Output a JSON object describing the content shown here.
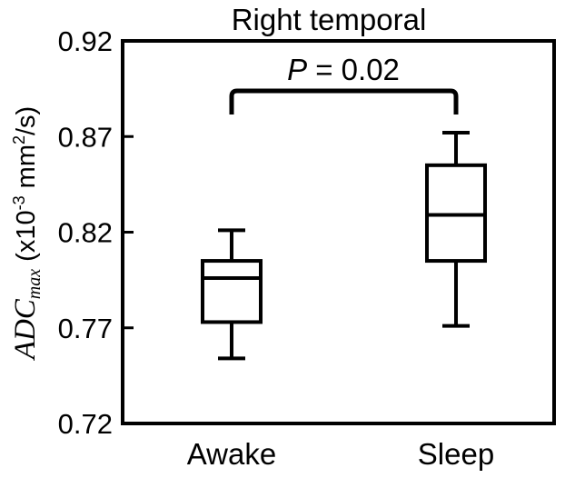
{
  "chart_data": {
    "type": "box",
    "title": "Right temporal",
    "ylabel": {
      "main": "ADC",
      "subscript": "max",
      "units_prefix": " (x10",
      "exp1": "-3",
      "units_mid": " mm",
      "exp2": "2",
      "units_suffix": "/s)"
    },
    "xlabel": "",
    "ylim": [
      0.72,
      0.92
    ],
    "yticks": [
      "0.72",
      "0.77",
      "0.82",
      "0.87",
      "0.92"
    ],
    "categories": [
      "Awake",
      "Sleep"
    ],
    "boxes": [
      {
        "category": "Awake",
        "whisker_low": 0.754,
        "q1": 0.773,
        "median": 0.796,
        "q3": 0.805,
        "whisker_high": 0.821
      },
      {
        "category": "Sleep",
        "whisker_low": 0.771,
        "q1": 0.805,
        "median": 0.829,
        "q3": 0.855,
        "whisker_high": 0.872
      }
    ],
    "annotation": {
      "p_label": "P",
      "p_text": " = 0.02",
      "between": [
        "Awake",
        "Sleep"
      ]
    },
    "grid": false,
    "color": "#000000"
  }
}
